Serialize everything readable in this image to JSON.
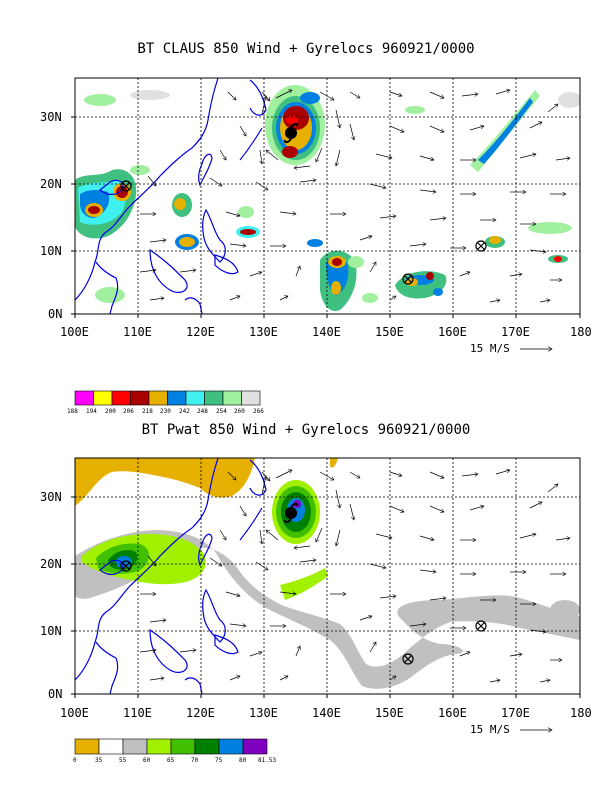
{
  "panels": [
    {
      "id": "claus",
      "title": "BT CLAUS 850 Wind + Gyrelocs 960921/0000",
      "lon_labels": [
        "100E",
        "110E",
        "120E",
        "130E",
        "140E",
        "150E",
        "160E",
        "170E",
        "180"
      ],
      "lat_labels": [
        "30N",
        "20N",
        "10N",
        "0N"
      ],
      "vector_ref": "15 M/S",
      "colorbar": {
        "labels": [
          "188",
          "194",
          "200",
          "206",
          "218",
          "230",
          "242",
          "248",
          "254",
          "260",
          "266"
        ],
        "colors": [
          "#ff00ff",
          "#ffff00",
          "#ff0000",
          "#aa0000",
          "#e6b000",
          "#0080e0",
          "#40f0f0",
          "#40c080",
          "#a0f0a0",
          "#e0e0e0"
        ]
      },
      "cyclone_center": {
        "lon": 135.3,
        "lat": 27.5
      },
      "gyre_markers": [
        {
          "lon": 107.8,
          "lat": 19.5
        },
        {
          "lon": 152.5,
          "lat": 5.5
        },
        {
          "lon": 164.2,
          "lat": 10.5
        }
      ]
    },
    {
      "id": "pwat",
      "title": "BT Pwat 850 Wind + Gyrelocs 960921/0000",
      "lon_labels": [
        "100E",
        "110E",
        "120E",
        "130E",
        "140E",
        "150E",
        "160E",
        "170E",
        "180"
      ],
      "lat_labels": [
        "30N",
        "20N",
        "10N",
        "0N"
      ],
      "vector_ref": "15 M/S",
      "colorbar": {
        "labels": [
          "0",
          "35",
          "55",
          "60",
          "65",
          "70",
          "75",
          "80",
          "81.53"
        ],
        "colors": [
          "#e6b000",
          "#ffffff",
          "#c0c0c0",
          "#a0f000",
          "#40c000",
          "#008000",
          "#0080e0",
          "#8000c0"
        ]
      },
      "cyclone_center": {
        "lon": 135.3,
        "lat": 27.5
      },
      "gyre_markers": [
        {
          "lon": 107.8,
          "lat": 19.5
        },
        {
          "lon": 152.5,
          "lat": 5.5
        },
        {
          "lon": 164.2,
          "lat": 10.5
        }
      ]
    }
  ]
}
